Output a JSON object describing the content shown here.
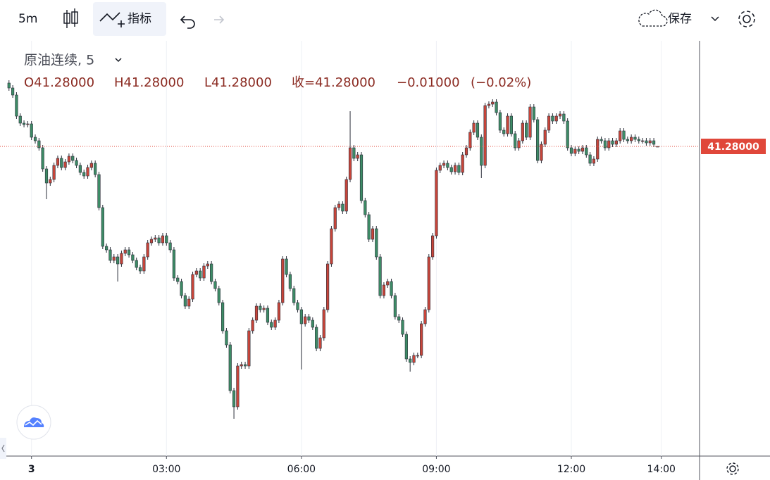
{
  "toolbar": {
    "interval": "5m",
    "indicators": "指标",
    "save": "保存"
  },
  "chart_data": {
    "type": "candlestick",
    "legend": {
      "title": "原油连续, 5",
      "open": "O41.28000",
      "high": "H41.28000",
      "low": "L41.28000",
      "close": "收=41.28000",
      "change": "−0.01000",
      "change_pct": "(−0.02%)"
    },
    "up_color": "#c8453a",
    "down_color": "#3d8c66",
    "grid": true,
    "xlim": [
      -42,
      891
    ],
    "xticks": [
      {
        "value": 0,
        "label": "3"
      },
      {
        "value": 180,
        "label": "03:00"
      },
      {
        "value": 360,
        "label": "06:00"
      },
      {
        "value": 540,
        "label": "09:00"
      },
      {
        "value": 720,
        "label": "12:00"
      },
      {
        "value": 840,
        "label": "14:00"
      }
    ],
    "ylim": [
      40.84,
      41.43
    ],
    "last_price": {
      "value": 41.28,
      "label": "41.28000"
    },
    "x": [
      -30,
      -25,
      -20,
      -15,
      -10,
      -5,
      0,
      5,
      10,
      15,
      20,
      25,
      30,
      35,
      40,
      45,
      50,
      55,
      60,
      65,
      70,
      75,
      80,
      85,
      90,
      95,
      100,
      105,
      110,
      115,
      120,
      125,
      130,
      135,
      140,
      145,
      150,
      155,
      160,
      165,
      170,
      175,
      180,
      185,
      190,
      195,
      200,
      205,
      210,
      215,
      220,
      225,
      230,
      235,
      240,
      245,
      250,
      255,
      260,
      265,
      270,
      275,
      280,
      285,
      290,
      295,
      300,
      305,
      310,
      315,
      320,
      325,
      330,
      335,
      340,
      345,
      350,
      355,
      360,
      365,
      370,
      375,
      380,
      385,
      390,
      395,
      400,
      405,
      410,
      415,
      420,
      425,
      430,
      435,
      440,
      445,
      450,
      455,
      460,
      465,
      470,
      475,
      480,
      485,
      490,
      495,
      500,
      505,
      510,
      515,
      520,
      525,
      530,
      535,
      540,
      545,
      550,
      555,
      560,
      565,
      570,
      575,
      580,
      585,
      590,
      595,
      600,
      605,
      610,
      615,
      620,
      625,
      630,
      635,
      640,
      645,
      650,
      655,
      660,
      665,
      670,
      675,
      680,
      685,
      690,
      695,
      700,
      705,
      710,
      715,
      720,
      725,
      730,
      735,
      740,
      745,
      750,
      755,
      760,
      765,
      770,
      775,
      780,
      785,
      790,
      795,
      800,
      805,
      810,
      815,
      820,
      825,
      830,
      835
    ],
    "open": [
      41.37,
      41.363,
      41.353,
      41.323,
      41.313,
      41.311,
      41.312,
      41.293,
      41.288,
      41.278,
      41.248,
      41.228,
      41.233,
      41.253,
      41.263,
      41.25,
      41.258,
      41.266,
      41.26,
      41.253,
      41.243,
      41.238,
      41.25,
      41.256,
      41.24,
      41.193,
      41.138,
      41.133,
      41.118,
      41.123,
      41.113,
      41.128,
      41.133,
      41.126,
      41.118,
      41.108,
      41.103,
      41.123,
      41.143,
      41.148,
      41.15,
      41.143,
      41.153,
      41.143,
      41.133,
      41.093,
      41.088,
      41.068,
      41.053,
      41.063,
      41.098,
      41.103,
      41.093,
      41.11,
      41.113,
      41.088,
      41.078,
      41.058,
      41.018,
      40.998,
      40.933,
      40.91,
      40.968,
      40.97,
      40.968,
      41.018,
      41.033,
      41.053,
      41.048,
      41.05,
      41.03,
      41.023,
      41.033,
      41.058,
      41.12,
      41.098,
      41.078,
      41.058,
      41.048,
      41.028,
      41.038,
      41.033,
      41.023,
      40.993,
      41.008,
      41.048,
      41.113,
      41.163,
      41.193,
      41.198,
      41.188,
      41.233,
      41.278,
      41.263,
      41.268,
      41.203,
      41.183,
      41.148,
      41.163,
      41.123,
      41.068,
      41.083,
      41.088,
      41.068,
      41.038,
      41.033,
      41.013,
      40.978,
      40.973,
      40.983,
      40.983,
      41.028,
      41.048,
      41.123,
      41.153,
      41.246,
      41.253,
      41.256,
      41.25,
      41.244,
      41.253,
      41.243,
      41.268,
      41.278,
      41.3,
      41.313,
      41.293,
      41.253,
      41.338,
      41.34,
      41.343,
      41.328,
      41.303,
      41.298,
      41.323,
      41.298,
      41.278,
      41.288,
      41.313,
      41.293,
      41.336,
      41.318,
      41.26,
      41.283,
      41.303,
      41.323,
      41.316,
      41.323,
      41.326,
      41.316,
      41.278,
      41.27,
      41.276,
      41.273,
      41.278,
      41.268,
      41.256,
      41.262,
      41.29,
      41.288,
      41.278,
      41.288,
      41.283,
      41.288,
      41.302,
      41.29,
      41.288,
      41.293,
      41.29,
      41.288,
      41.288,
      41.285,
      41.288,
      41.28
    ],
    "high": [
      41.374,
      41.367,
      41.357,
      41.327,
      41.317,
      41.316,
      41.316,
      41.297,
      41.292,
      41.282,
      41.252,
      41.237,
      41.257,
      41.267,
      41.267,
      41.262,
      41.27,
      41.27,
      41.264,
      41.257,
      41.247,
      41.254,
      41.26,
      41.26,
      41.244,
      41.197,
      41.142,
      41.137,
      41.127,
      41.127,
      41.132,
      41.137,
      41.137,
      41.13,
      41.122,
      41.112,
      41.127,
      41.147,
      41.152,
      41.154,
      41.154,
      41.157,
      41.157,
      41.147,
      41.137,
      41.097,
      41.092,
      41.072,
      41.067,
      41.102,
      41.107,
      41.107,
      41.114,
      41.117,
      41.117,
      41.092,
      41.082,
      41.062,
      41.022,
      41.002,
      40.937,
      40.972,
      40.974,
      40.974,
      41.022,
      41.037,
      41.057,
      41.057,
      41.054,
      41.054,
      41.034,
      41.037,
      41.062,
      41.124,
      41.124,
      41.102,
      41.082,
      41.062,
      41.052,
      41.042,
      41.042,
      41.037,
      41.027,
      41.012,
      41.052,
      41.117,
      41.167,
      41.197,
      41.202,
      41.202,
      41.237,
      41.33,
      41.282,
      41.272,
      41.272,
      41.207,
      41.187,
      41.167,
      41.167,
      41.127,
      41.087,
      41.092,
      41.092,
      41.072,
      41.042,
      41.037,
      41.017,
      40.982,
      40.987,
      40.987,
      41.032,
      41.052,
      41.127,
      41.157,
      41.25,
      41.257,
      41.26,
      41.26,
      41.254,
      41.257,
      41.257,
      41.272,
      41.282,
      41.304,
      41.317,
      41.317,
      41.297,
      41.342,
      41.344,
      41.347,
      41.347,
      41.332,
      41.307,
      41.327,
      41.327,
      41.302,
      41.292,
      41.317,
      41.317,
      41.34,
      41.34,
      41.322,
      41.287,
      41.307,
      41.327,
      41.327,
      41.327,
      41.33,
      41.33,
      41.32,
      41.282,
      41.28,
      41.28,
      41.282,
      41.282,
      41.272,
      41.266,
      41.294,
      41.294,
      41.292,
      41.292,
      41.292,
      41.292,
      41.306,
      41.306,
      41.294,
      41.297,
      41.297,
      41.294,
      41.292,
      41.292,
      41.292,
      41.292,
      41.28
    ],
    "low": [
      41.359,
      41.349,
      41.319,
      41.309,
      41.307,
      41.307,
      41.289,
      41.284,
      41.274,
      41.244,
      41.205,
      41.224,
      41.229,
      41.249,
      41.246,
      41.246,
      41.254,
      41.256,
      41.249,
      41.239,
      41.234,
      41.234,
      41.246,
      41.236,
      41.189,
      41.134,
      41.129,
      41.114,
      41.114,
      41.088,
      41.109,
      41.124,
      41.122,
      41.114,
      41.104,
      41.099,
      41.099,
      41.119,
      41.139,
      41.144,
      41.139,
      41.139,
      41.139,
      41.129,
      41.089,
      41.084,
      41.064,
      41.049,
      41.049,
      41.059,
      41.094,
      41.089,
      41.089,
      41.106,
      41.084,
      41.074,
      41.054,
      41.014,
      40.994,
      40.929,
      40.893,
      40.906,
      40.964,
      40.964,
      40.964,
      41.014,
      41.029,
      41.044,
      41.044,
      41.026,
      41.019,
      41.019,
      41.029,
      41.054,
      41.094,
      41.074,
      41.054,
      41.044,
      40.963,
      41.024,
      41.029,
      41.019,
      40.989,
      40.989,
      41.004,
      41.044,
      41.109,
      41.159,
      41.189,
      41.184,
      41.184,
      41.229,
      41.259,
      41.259,
      41.199,
      41.179,
      41.144,
      41.144,
      41.119,
      41.064,
      41.064,
      41.079,
      41.064,
      41.034,
      41.029,
      41.009,
      40.974,
      40.96,
      40.969,
      40.979,
      40.979,
      41.024,
      41.044,
      41.119,
      41.149,
      41.242,
      41.249,
      41.246,
      41.24,
      41.24,
      41.239,
      41.239,
      41.264,
      41.274,
      41.296,
      41.289,
      41.235,
      41.249,
      41.334,
      41.336,
      41.324,
      41.299,
      41.294,
      41.294,
      41.294,
      41.274,
      41.274,
      41.284,
      41.289,
      41.289,
      41.314,
      41.256,
      41.256,
      41.279,
      41.299,
      41.312,
      41.312,
      41.319,
      41.312,
      41.274,
      41.266,
      41.266,
      41.269,
      41.269,
      41.264,
      41.252,
      41.252,
      41.258,
      41.284,
      41.274,
      41.274,
      41.279,
      41.279,
      41.284,
      41.286,
      41.284,
      41.284,
      41.286,
      41.284,
      41.284,
      41.281,
      41.281,
      41.279,
      41.28
    ],
    "close": [
      41.363,
      41.353,
      41.323,
      41.313,
      41.311,
      41.312,
      41.293,
      41.288,
      41.278,
      41.248,
      41.228,
      41.233,
      41.253,
      41.263,
      41.25,
      41.258,
      41.266,
      41.26,
      41.253,
      41.243,
      41.238,
      41.25,
      41.256,
      41.24,
      41.193,
      41.138,
      41.133,
      41.118,
      41.123,
      41.113,
      41.128,
      41.133,
      41.126,
      41.118,
      41.108,
      41.103,
      41.123,
      41.143,
      41.148,
      41.15,
      41.143,
      41.153,
      41.143,
      41.133,
      41.093,
      41.088,
      41.068,
      41.053,
      41.063,
      41.098,
      41.103,
      41.093,
      41.11,
      41.113,
      41.088,
      41.078,
      41.058,
      41.018,
      40.998,
      40.933,
      40.91,
      40.968,
      40.97,
      40.968,
      41.018,
      41.033,
      41.053,
      41.048,
      41.05,
      41.03,
      41.023,
      41.033,
      41.058,
      41.12,
      41.098,
      41.078,
      41.058,
      41.048,
      41.028,
      41.038,
      41.033,
      41.023,
      40.993,
      41.008,
      41.048,
      41.113,
      41.163,
      41.193,
      41.198,
      41.188,
      41.233,
      41.278,
      41.263,
      41.268,
      41.203,
      41.183,
      41.148,
      41.163,
      41.123,
      41.068,
      41.083,
      41.088,
      41.068,
      41.038,
      41.033,
      41.013,
      40.978,
      40.973,
      40.983,
      40.983,
      41.028,
      41.048,
      41.123,
      41.153,
      41.246,
      41.253,
      41.256,
      41.25,
      41.244,
      41.253,
      41.243,
      41.268,
      41.278,
      41.3,
      41.313,
      41.293,
      41.253,
      41.338,
      41.34,
      41.343,
      41.328,
      41.303,
      41.298,
      41.323,
      41.298,
      41.278,
      41.288,
      41.313,
      41.293,
      41.336,
      41.318,
      41.26,
      41.283,
      41.303,
      41.323,
      41.316,
      41.323,
      41.326,
      41.316,
      41.278,
      41.27,
      41.276,
      41.273,
      41.278,
      41.268,
      41.256,
      41.262,
      41.29,
      41.288,
      41.278,
      41.288,
      41.283,
      41.288,
      41.302,
      41.29,
      41.288,
      41.293,
      41.29,
      41.288,
      41.288,
      41.285,
      41.288,
      41.283,
      41.28
    ]
  }
}
